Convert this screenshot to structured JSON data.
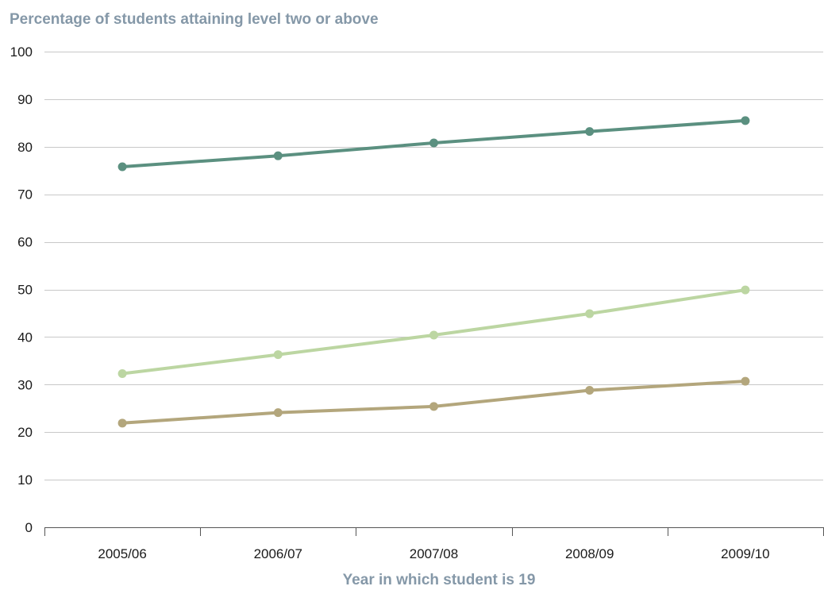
{
  "chart_data": {
    "type": "line",
    "title": "",
    "xlabel": "Year in which student is 19",
    "ylabel": "Percentage of students attaining level two or above",
    "categories": [
      "2005/06",
      "2006/07",
      "2007/08",
      "2008/09",
      "2009/10"
    ],
    "ylim": [
      0,
      100
    ],
    "yticks": [
      0,
      10,
      20,
      30,
      40,
      50,
      60,
      70,
      80,
      90,
      100
    ],
    "grid": true,
    "series": [
      {
        "values": [
          75.8,
          78.1,
          80.8,
          83.2,
          85.5
        ],
        "color": "#5b9080"
      },
      {
        "values": [
          32.3,
          36.3,
          40.4,
          44.9,
          49.9
        ],
        "color": "#bcd6a2"
      },
      {
        "values": [
          21.9,
          24.1,
          25.4,
          28.8,
          30.7
        ],
        "color": "#b3a67c"
      }
    ]
  }
}
